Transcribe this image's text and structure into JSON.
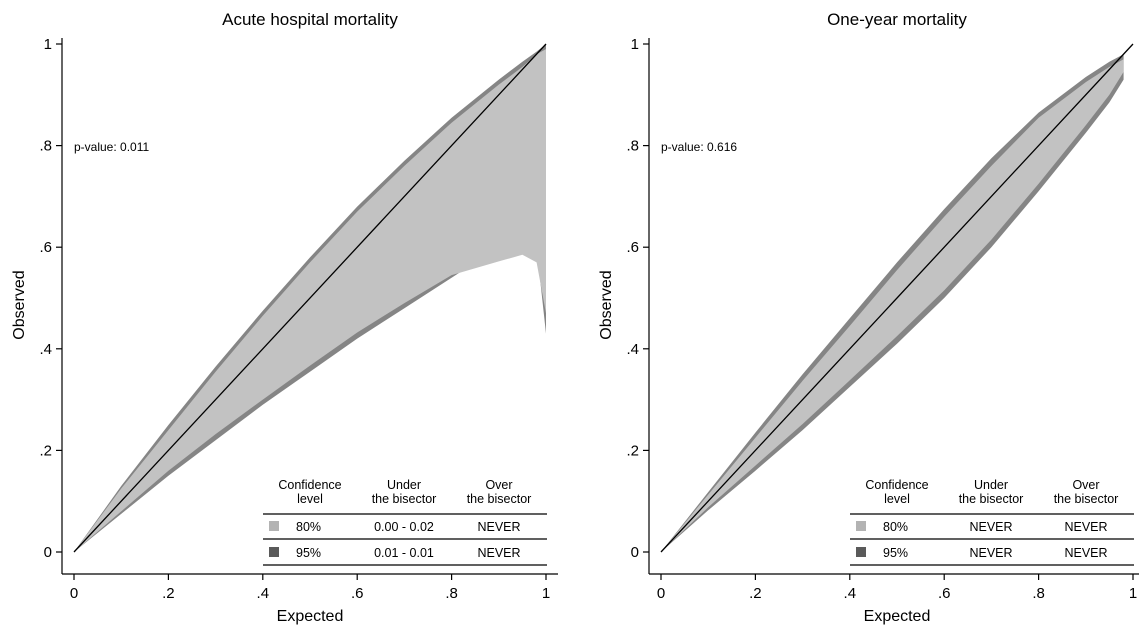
{
  "chart_data": [
    {
      "type": "area",
      "title": "Acute hospital mortality",
      "xlabel": "Expected",
      "ylabel": "Observed",
      "xlim": [
        0,
        1
      ],
      "ylim": [
        0,
        1
      ],
      "xticks": [
        "0",
        ".2",
        ".4",
        ".6",
        ".8",
        "1"
      ],
      "yticks": [
        "0",
        ".2",
        ".4",
        ".6",
        ".8",
        "1"
      ],
      "annotation": "p-value: 0.011",
      "bisector": {
        "x": [
          0,
          1
        ],
        "y": [
          0,
          1
        ]
      },
      "bands": [
        {
          "level": "95%",
          "color": "#858585",
          "x": [
            0,
            0.1,
            0.2,
            0.3,
            0.4,
            0.5,
            0.6,
            0.7,
            0.8,
            0.9,
            0.95,
            0.98,
            1.0
          ],
          "upper": [
            0,
            0.13,
            0.25,
            0.365,
            0.475,
            0.58,
            0.68,
            0.77,
            0.855,
            0.93,
            0.965,
            0.985,
            1.0
          ],
          "lower": [
            0,
            0.075,
            0.15,
            0.22,
            0.29,
            0.355,
            0.42,
            0.48,
            0.54,
            0.6,
            0.625,
            0.6,
            0.43
          ]
        },
        {
          "level": "80%",
          "color": "#c2c2c2",
          "x": [
            0,
            0.1,
            0.2,
            0.3,
            0.4,
            0.5,
            0.6,
            0.7,
            0.8,
            0.9,
            0.95,
            0.98,
            1.0
          ],
          "upper": [
            0,
            0.125,
            0.24,
            0.355,
            0.465,
            0.57,
            0.67,
            0.76,
            0.845,
            0.92,
            0.955,
            0.98,
            0.99
          ],
          "lower": [
            0,
            0.08,
            0.16,
            0.232,
            0.3,
            0.367,
            0.432,
            0.49,
            0.545,
            0.572,
            0.585,
            0.57,
            0.47
          ]
        }
      ],
      "legend_table": {
        "headers": [
          [
            "Confidence",
            "level"
          ],
          [
            "Under",
            "the bisector"
          ],
          [
            "Over",
            "the bisector"
          ]
        ],
        "rows": [
          {
            "level": "80%",
            "swatch": "#b3b3b3",
            "under": "0.00 - 0.02",
            "over": "NEVER"
          },
          {
            "level": "95%",
            "swatch": "#5a5a5a",
            "under": "0.01 - 0.01",
            "over": "NEVER"
          }
        ]
      }
    },
    {
      "type": "area",
      "title": "One-year mortality",
      "xlabel": "Expected",
      "ylabel": "Observed",
      "xlim": [
        0,
        1
      ],
      "ylim": [
        0,
        1
      ],
      "xticks": [
        "0",
        ".2",
        ".4",
        ".6",
        ".8",
        "1"
      ],
      "yticks": [
        "0",
        ".2",
        ".4",
        ".6",
        ".8",
        "1"
      ],
      "annotation": "p-value: 0.616",
      "bisector": {
        "x": [
          0,
          1
        ],
        "y": [
          0,
          1
        ]
      },
      "bands": [
        {
          "level": "95%",
          "color": "#858585",
          "x": [
            0,
            0.1,
            0.2,
            0.3,
            0.4,
            0.5,
            0.6,
            0.7,
            0.8,
            0.9,
            0.95,
            0.98
          ],
          "upper": [
            0,
            0.118,
            0.235,
            0.35,
            0.46,
            0.57,
            0.675,
            0.775,
            0.865,
            0.935,
            0.965,
            0.98
          ],
          "lower": [
            0,
            0.082,
            0.16,
            0.24,
            0.325,
            0.41,
            0.5,
            0.6,
            0.71,
            0.825,
            0.885,
            0.93
          ]
        },
        {
          "level": "80%",
          "color": "#c2c2c2",
          "x": [
            0,
            0.1,
            0.2,
            0.3,
            0.4,
            0.5,
            0.6,
            0.7,
            0.8,
            0.9,
            0.95,
            0.98
          ],
          "upper": [
            0,
            0.113,
            0.225,
            0.337,
            0.445,
            0.555,
            0.66,
            0.76,
            0.855,
            0.925,
            0.955,
            0.97
          ],
          "lower": [
            0,
            0.088,
            0.17,
            0.252,
            0.338,
            0.425,
            0.515,
            0.615,
            0.725,
            0.84,
            0.9,
            0.945
          ]
        }
      ],
      "legend_table": {
        "headers": [
          [
            "Confidence",
            "level"
          ],
          [
            "Under",
            "the bisector"
          ],
          [
            "Over",
            "the bisector"
          ]
        ],
        "rows": [
          {
            "level": "80%",
            "swatch": "#b3b3b3",
            "under": "NEVER",
            "over": "NEVER"
          },
          {
            "level": "95%",
            "swatch": "#5a5a5a",
            "under": "NEVER",
            "over": "NEVER"
          }
        ]
      }
    }
  ]
}
